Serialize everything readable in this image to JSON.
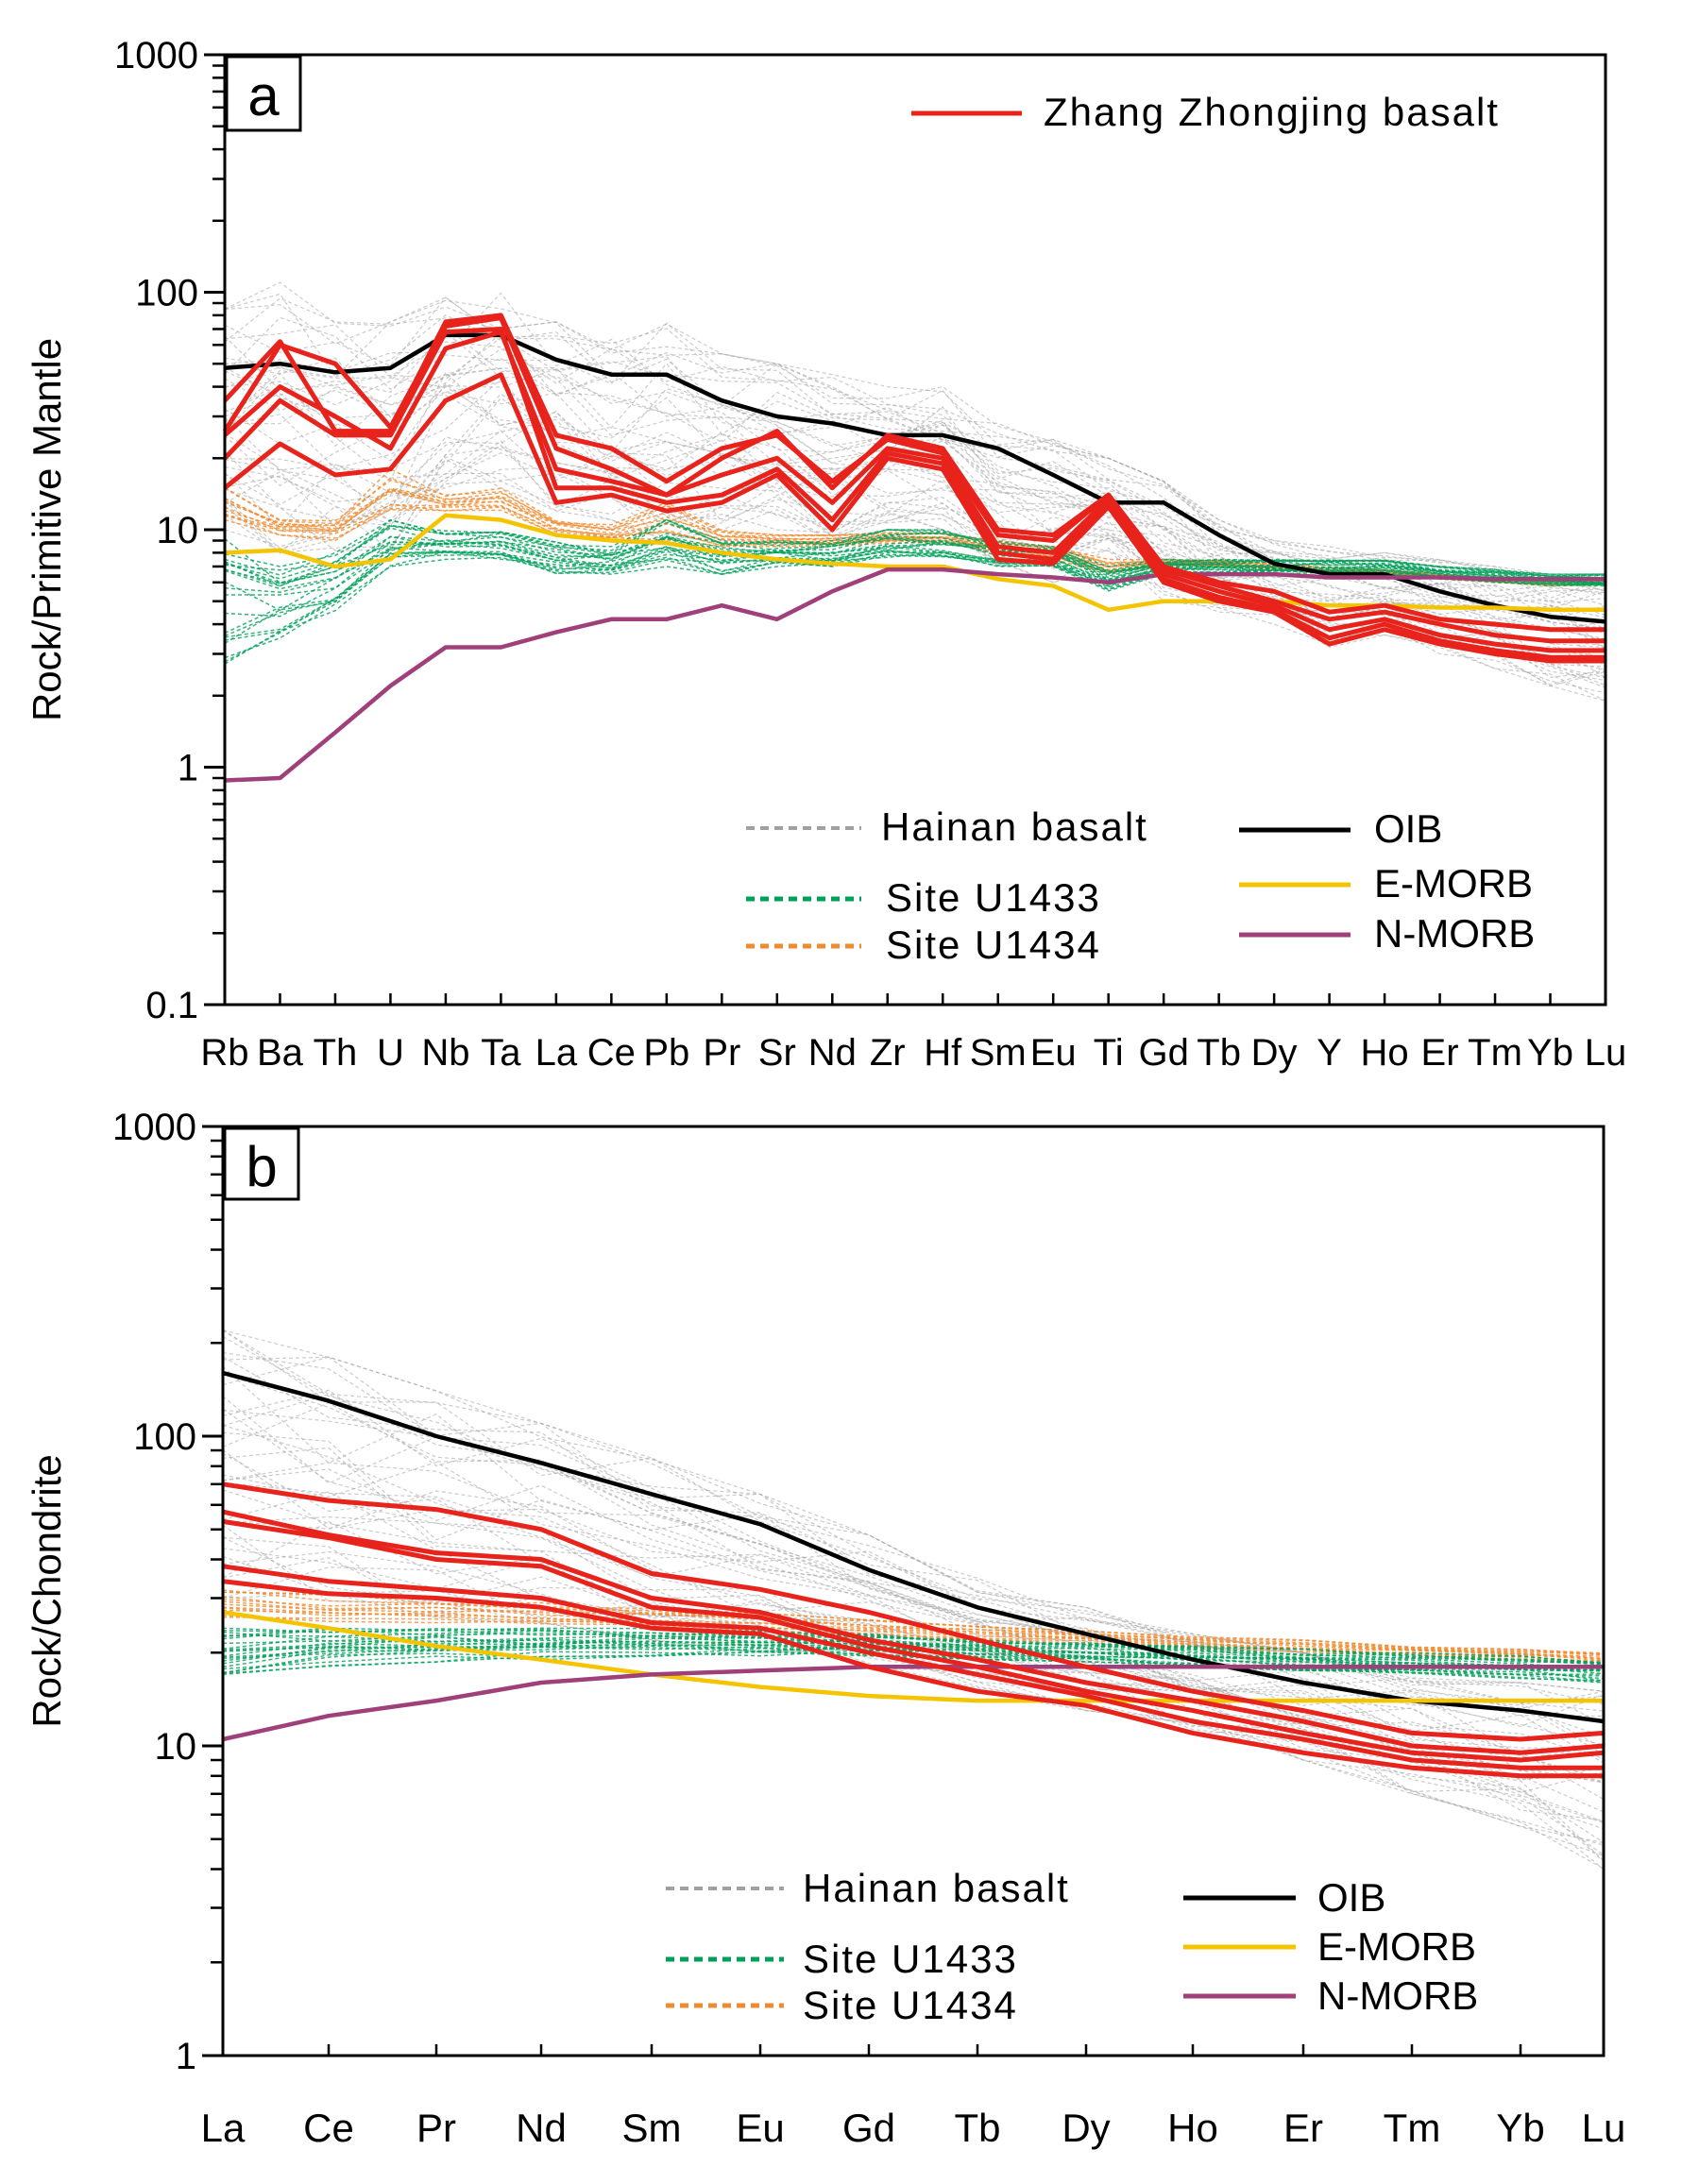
{
  "chart_data": [
    {
      "type": "line",
      "panel": "a",
      "title": "",
      "ylabel": "Rock/Primitive Mantle",
      "xlabel": "",
      "yscale": "log",
      "ylim": [
        0.1,
        1000
      ],
      "ytick_labels": [
        "0.1",
        "1",
        "10",
        "100",
        "1000"
      ],
      "categories": [
        "Rb",
        "Ba",
        "Th",
        "U",
        "Nb",
        "Ta",
        "La",
        "Ce",
        "Pb",
        "Pr",
        "Sr",
        "Nd",
        "Zr",
        "Hf",
        "Sm",
        "Eu",
        "Ti",
        "Gd",
        "Tb",
        "Dy",
        "Y",
        "Ho",
        "Er",
        "Tm",
        "Yb",
        "Lu"
      ],
      "legend": {
        "zhang": "Zhang Zhongjing basalt",
        "hainan": "Hainan basalt",
        "u1433": "Site U1433",
        "u1434": "Site U1434",
        "oib": "OIB",
        "emorb": "E-MORB",
        "nmorb": "N-MORB"
      },
      "colors": {
        "zhang": "#e8231c",
        "hainan": "#a0a0a0",
        "u1433": "#00a05a",
        "u1434": "#f08a2e",
        "oib": "#000000",
        "emorb": "#f5c400",
        "nmorb": "#a0407a"
      },
      "series": [
        {
          "name": "OIB",
          "group": "oib",
          "values": [
            48,
            50,
            46,
            48,
            66,
            66,
            52,
            45,
            45,
            35,
            30,
            28,
            25,
            25,
            22,
            17,
            13,
            13,
            9.5,
            7.2,
            6.5,
            6.5,
            5.5,
            4.8,
            4.3,
            4.1
          ]
        },
        {
          "name": "E-MORB",
          "group": "emorb",
          "values": [
            8,
            8.2,
            7,
            7.5,
            11.5,
            11,
            9.5,
            9,
            8.8,
            8,
            7.5,
            7.2,
            7,
            7,
            6.2,
            5.8,
            4.6,
            5,
            5,
            5,
            4.8,
            4.8,
            4.7,
            4.7,
            4.6,
            4.6
          ]
        },
        {
          "name": "N-MORB",
          "group": "nmorb",
          "values": [
            0.88,
            0.9,
            1.4,
            2.2,
            3.2,
            3.2,
            3.7,
            4.2,
            4.2,
            4.8,
            4.2,
            5.5,
            6.8,
            6.8,
            6.5,
            6.3,
            6,
            6.5,
            6.5,
            6.5,
            6.3,
            6.3,
            6.3,
            6.2,
            6.2,
            6.2
          ]
        },
        {
          "name": "Zhang Zhongjing basalt 1",
          "group": "zhang",
          "values": [
            26,
            60,
            50,
            27,
            72,
            78,
            22,
            18,
            14,
            20,
            26,
            15,
            25,
            22,
            10,
            9.5,
            14,
            7,
            6,
            5.5,
            4.5,
            4.8,
            4.2,
            4,
            3.8,
            3.8
          ]
        },
        {
          "name": "Zhang Zhongjing basalt 2",
          "group": "zhang",
          "values": [
            35,
            62,
            26,
            26,
            75,
            80,
            25,
            22,
            16,
            22,
            25,
            16,
            24,
            21,
            9.5,
            9,
            14,
            6.8,
            5.8,
            5,
            4.2,
            4.5,
            4,
            3.6,
            3.4,
            3.4
          ]
        },
        {
          "name": "Zhang Zhongjing basalt 3",
          "group": "zhang",
          "values": [
            25,
            40,
            30,
            22,
            58,
            68,
            18,
            16,
            14,
            17,
            20,
            13,
            22,
            20,
            8.5,
            8,
            13.5,
            6.5,
            5.5,
            4.8,
            3.8,
            4.2,
            3.6,
            3.3,
            3.1,
            3.1
          ]
        },
        {
          "name": "Zhang Zhongjing basalt 4",
          "group": "zhang",
          "values": [
            20,
            35,
            25,
            25,
            68,
            70,
            15,
            15,
            13,
            14,
            18,
            11,
            21,
            19,
            8,
            7.5,
            13,
            6.2,
            5.2,
            4.6,
            3.5,
            4,
            3.4,
            3.1,
            2.9,
            2.9
          ]
        },
        {
          "name": "Zhang Zhongjing basalt 5",
          "group": "zhang",
          "values": [
            15,
            23,
            17,
            18,
            35,
            45,
            13,
            14,
            12,
            13,
            17,
            10,
            20,
            18,
            7.5,
            7.2,
            12.5,
            6,
            5,
            4.5,
            3.3,
            3.8,
            3.3,
            3,
            2.8,
            2.8
          ]
        }
      ],
      "bands": {
        "hainan": {
          "low": [
            10,
            8,
            8,
            8,
            15,
            15,
            12,
            11,
            9,
            10,
            10,
            9,
            10,
            10,
            7,
            6,
            7,
            5,
            4.5,
            4,
            3.2,
            3.6,
            3,
            2.6,
            2.2,
            1.9
          ],
          "high": [
            85,
            110,
            75,
            75,
            95,
            100,
            75,
            65,
            80,
            55,
            50,
            45,
            40,
            40,
            28,
            24,
            20,
            16,
            11,
            9,
            8.5,
            8,
            7.5,
            7,
            6.5,
            6.2
          ]
        },
        "u1433": {
          "low": [
            2.5,
            3.5,
            4.5,
            7,
            7.5,
            7.5,
            6.5,
            6.5,
            7,
            6.5,
            7,
            7,
            7.5,
            7.5,
            7,
            7,
            5.5,
            6.5,
            6.5,
            6.5,
            6.5,
            6.5,
            6.2,
            6,
            5.8,
            5.8
          ],
          "high": [
            10,
            7,
            8,
            11,
            10,
            10,
            9,
            8.5,
            11,
            9,
            9,
            9,
            10,
            10,
            9,
            8.5,
            7,
            7.5,
            7.5,
            7.5,
            7.5,
            7.5,
            7,
            6.8,
            6.5,
            6.5
          ]
        },
        "u1434": {
          "low": [
            11,
            9.5,
            9,
            12,
            12,
            12,
            9.5,
            9,
            9,
            8.5,
            8.5,
            8.5,
            8.8,
            8.8,
            8,
            7.5,
            6.5,
            7,
            7,
            6.8,
            6.5,
            6.5,
            6.2,
            6,
            5.8,
            5.8
          ],
          "high": [
            15,
            11,
            11,
            18,
            14,
            15,
            11,
            10.5,
            13,
            10,
            9.5,
            9.5,
            9.8,
            9.8,
            9,
            8.5,
            7.5,
            7.5,
            7.5,
            7.2,
            7,
            6.8,
            6.5,
            6.3,
            6.2,
            6.2
          ]
        }
      }
    },
    {
      "type": "line",
      "panel": "b",
      "title": "",
      "ylabel": "Rock/Chondrite",
      "xlabel": "",
      "yscale": "log",
      "ylim": [
        1,
        1000
      ],
      "ytick_labels": [
        "1",
        "10",
        "100",
        "1000"
      ],
      "categories": [
        "La",
        "Ce",
        "Pr",
        "Nd",
        "Sm",
        "Eu",
        "Gd",
        "Tb",
        "Dy",
        "Ho",
        "Er",
        "Tm",
        "Yb",
        "Lu"
      ],
      "legend": {
        "hainan": "Hainan basalt",
        "u1433": "Site U1433",
        "u1434": "Site U1434",
        "oib": "OIB",
        "emorb": "E-MORB",
        "nmorb": "N-MORB"
      },
      "colors": {
        "zhang": "#e8231c",
        "hainan": "#a0a0a0",
        "u1433": "#00a05a",
        "u1434": "#f08a2e",
        "oib": "#000000",
        "emorb": "#f5c400",
        "nmorb": "#a0407a"
      },
      "series": [
        {
          "name": "OIB",
          "group": "oib",
          "values": [
            160,
            130,
            100,
            82,
            65,
            52,
            37,
            28,
            23,
            19,
            16,
            14,
            13,
            12
          ]
        },
        {
          "name": "E-MORB",
          "group": "emorb",
          "values": [
            27,
            24,
            21,
            19,
            17,
            15.5,
            14.5,
            14,
            14,
            14,
            14,
            14,
            14,
            14
          ]
        },
        {
          "name": "N-MORB",
          "group": "nmorb",
          "values": [
            10.5,
            12.5,
            14,
            16,
            17,
            17.5,
            18,
            18,
            18,
            18,
            18,
            18,
            18,
            18
          ]
        },
        {
          "name": "Zhang Zhongjing basalt 1",
          "group": "zhang",
          "values": [
            70,
            62,
            58,
            50,
            36,
            32,
            27,
            22,
            18,
            15,
            13,
            11,
            10.5,
            11
          ]
        },
        {
          "name": "Zhang Zhongjing basalt 2",
          "group": "zhang",
          "values": [
            57,
            48,
            42,
            40,
            30,
            27,
            22,
            19,
            16,
            14,
            12,
            10,
            9.5,
            10
          ]
        },
        {
          "name": "Zhang Zhongjing basalt 3",
          "group": "zhang",
          "values": [
            53,
            47,
            40,
            38,
            28,
            26,
            21,
            18,
            15,
            13,
            11,
            9.5,
            9,
            9.5
          ]
        },
        {
          "name": "Zhang Zhongjing basalt 4",
          "group": "zhang",
          "values": [
            38,
            34,
            32,
            30,
            25,
            24,
            20,
            17,
            14.5,
            12,
            10.5,
            9,
            8.5,
            8.5
          ]
        },
        {
          "name": "Zhang Zhongjing basalt 5",
          "group": "zhang",
          "values": [
            34,
            31,
            30,
            28,
            24,
            23,
            18,
            15,
            13.5,
            11,
            9.5,
            8.5,
            8,
            8
          ]
        }
      ],
      "bands": {
        "hainan": {
          "low": [
            30,
            28,
            26,
            25,
            22,
            20,
            18,
            15,
            13,
            11,
            9,
            7,
            5.5,
            4
          ],
          "high": [
            220,
            180,
            140,
            110,
            85,
            65,
            48,
            35,
            28,
            23,
            20,
            18,
            16,
            15
          ]
        },
        "u1433": {
          "low": [
            17,
            18,
            18.5,
            19,
            19.5,
            19.5,
            19.5,
            19,
            18.5,
            18,
            17.5,
            17,
            16.5,
            16
          ],
          "high": [
            24,
            24,
            24,
            24,
            24,
            23.5,
            23,
            22,
            21.5,
            21,
            20.5,
            20,
            19.5,
            19
          ]
        },
        "u1434": {
          "low": [
            26,
            25,
            25,
            24.5,
            24,
            23.5,
            22.5,
            22,
            21.5,
            20.5,
            20,
            19.5,
            19,
            18.5
          ],
          "high": [
            33,
            31,
            30,
            29,
            28,
            27,
            25.5,
            24.5,
            23.5,
            22.5,
            22,
            21,
            20.5,
            20
          ]
        }
      }
    }
  ],
  "panel_labels": {
    "a": "a",
    "b": "b"
  }
}
